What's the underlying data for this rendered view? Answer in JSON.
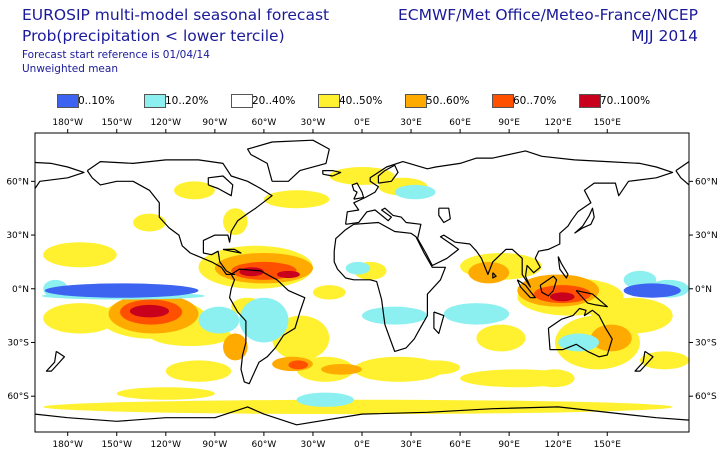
{
  "header": {
    "title_left": "EUROSIP multi-model seasonal forecast",
    "subtitle_left": "Prob(precipitation < lower tercile)",
    "reference": "Forecast start reference is 01/04/14",
    "mean_type": "Unweighted mean",
    "title_right": "ECMWF/Met Office/Meteo-France/NCEP",
    "season": "MJJ 2014"
  },
  "legend": [
    {
      "label": "0..10%",
      "color": "#3c64f0"
    },
    {
      "label": "10..20%",
      "color": "#8cf0f0"
    },
    {
      "label": "20..40%",
      "color": "#ffffff"
    },
    {
      "label": "40..50%",
      "color": "#fff030"
    },
    {
      "label": "50..60%",
      "color": "#ffaa00"
    },
    {
      "label": "60..70%",
      "color": "#ff5000"
    },
    {
      "label": "70..100%",
      "color": "#c8001e"
    }
  ],
  "map": {
    "projection": "equirectangular, Pacific-centred",
    "lon_labels": [
      "180°W",
      "150°W",
      "120°W",
      "90°W",
      "60°W",
      "30°W",
      "0°E",
      "30°E",
      "60°E",
      "90°E",
      "120°E",
      "150°E"
    ],
    "lat_labels": [
      "60°N",
      "30°N",
      "0°N",
      "30°S",
      "60°S"
    ]
  }
}
